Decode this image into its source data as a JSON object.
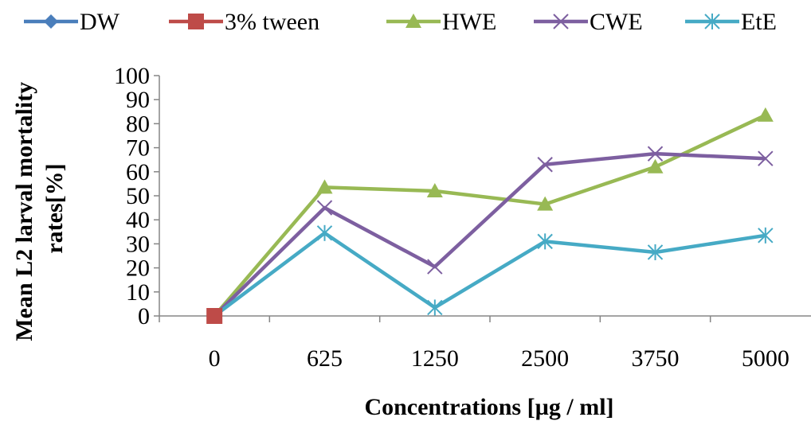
{
  "chart_data": {
    "type": "line",
    "title": "",
    "xlabel": "Concentrations [µg / ml]",
    "ylabel_lines": [
      "Mean L2 larval mortality",
      "rates[%]"
    ],
    "categories": [
      "0",
      "625",
      "1250",
      "2500",
      "3750",
      "5000"
    ],
    "ylim": [
      0,
      100
    ],
    "yticks": [
      0,
      10,
      20,
      30,
      40,
      50,
      60,
      70,
      80,
      90,
      100
    ],
    "grid": false,
    "legend_position": "top",
    "series": [
      {
        "name": "DW",
        "color": "#4a7ebb",
        "marker": "diamond",
        "values": [
          0,
          null,
          null,
          null,
          null,
          null
        ]
      },
      {
        "name": "3% tween",
        "color": "#be4b48",
        "marker": "square",
        "values": [
          0,
          null,
          null,
          null,
          null,
          null
        ]
      },
      {
        "name": "HWE",
        "color": "#98b954",
        "marker": "triangle",
        "values": [
          0,
          53.5,
          52,
          46.5,
          62,
          83.5
        ]
      },
      {
        "name": "CWE",
        "color": "#7d5fa0",
        "marker": "x",
        "values": [
          0,
          45,
          20.5,
          63,
          67.5,
          65.5
        ]
      },
      {
        "name": "EtE",
        "color": "#46aac5",
        "marker": "star",
        "values": [
          0,
          34.5,
          3.5,
          31,
          26.5,
          33.5
        ]
      }
    ]
  }
}
